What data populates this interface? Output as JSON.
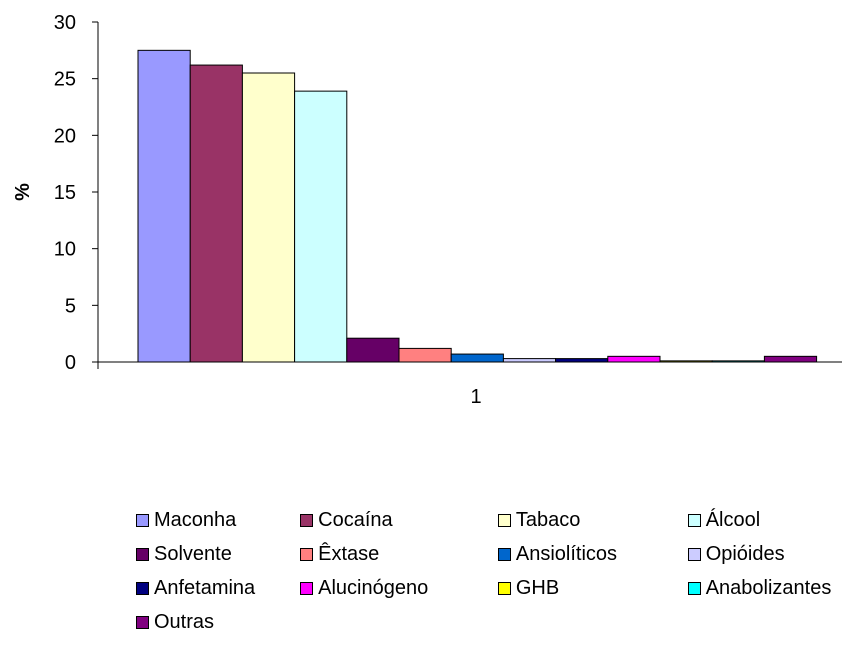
{
  "chart_data": {
    "type": "bar",
    "title": "",
    "xlabel": "",
    "ylabel": "%",
    "ylim": [
      0,
      30
    ],
    "yticks": [
      0,
      5,
      10,
      15,
      20,
      25,
      30
    ],
    "categories": [
      "1"
    ],
    "grid": false,
    "legend_position": "bottom",
    "series": [
      {
        "name": "Maconha",
        "values": [
          27.5
        ],
        "color": "#9999ff"
      },
      {
        "name": "Cocaína",
        "values": [
          26.2
        ],
        "color": "#993366"
      },
      {
        "name": "Tabaco",
        "values": [
          25.5
        ],
        "color": "#ffffcc"
      },
      {
        "name": "Álcool",
        "values": [
          23.9
        ],
        "color": "#ccffff"
      },
      {
        "name": "Solvente",
        "values": [
          2.1
        ],
        "color": "#660066"
      },
      {
        "name": "Êxtase",
        "values": [
          1.2
        ],
        "color": "#ff8080"
      },
      {
        "name": "Ansiolíticos",
        "values": [
          0.7
        ],
        "color": "#0066cc"
      },
      {
        "name": "Opióides",
        "values": [
          0.3
        ],
        "color": "#ccccff"
      },
      {
        "name": "Anfetamina",
        "values": [
          0.3
        ],
        "color": "#000080"
      },
      {
        "name": "Alucinógeno",
        "values": [
          0.5
        ],
        "color": "#ff00ff"
      },
      {
        "name": "GHB",
        "values": [
          0.1
        ],
        "color": "#ffff00"
      },
      {
        "name": "Anabolizantes",
        "values": [
          0.1
        ],
        "color": "#00ffff"
      },
      {
        "name": "Outras",
        "values": [
          0.5
        ],
        "color": "#800080"
      }
    ]
  }
}
